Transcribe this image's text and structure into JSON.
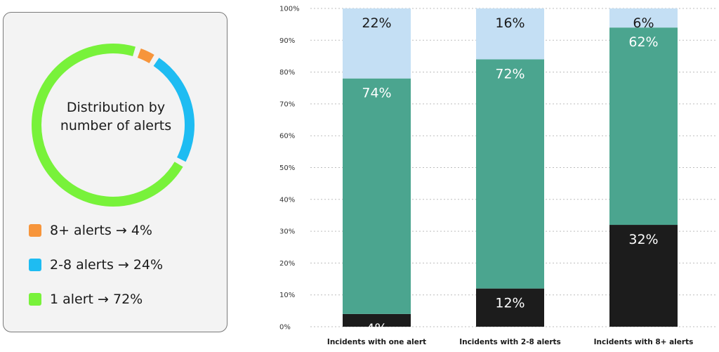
{
  "donut": {
    "title_line1": "Distribution by",
    "title_line2": "number of alerts",
    "slices": [
      {
        "label": "8+ alerts → 4%",
        "value": 4,
        "color": "#f7953b"
      },
      {
        "label": "2-8 alerts → 24%",
        "value": 24,
        "color": "#1ebcf2"
      },
      {
        "label": "1 alert → 72%",
        "value": 72,
        "color": "#78f23a"
      }
    ]
  },
  "chart_data": {
    "type": "bar",
    "stacked": true,
    "categories": [
      "Incidents with one alert",
      "Incidents with 2-8 alerts",
      "Incidents with 8+ alerts"
    ],
    "series": [
      {
        "values": [
          4,
          12,
          32
        ],
        "labels": [
          "4%",
          "12%",
          "32%"
        ],
        "color": "#1c1c1c",
        "label_color": "#ffffff"
      },
      {
        "values": [
          74,
          72,
          62
        ],
        "labels": [
          "74%",
          "72%",
          "62%"
        ],
        "color": "#4ba58f",
        "label_color": "#ffffff"
      },
      {
        "values": [
          22,
          16,
          6
        ],
        "labels": [
          "22%",
          "16%",
          "6%"
        ],
        "color": "#c4dff4",
        "label_color": "#1a1a1a"
      }
    ],
    "y_ticks": [
      "0%",
      "10%",
      "20%",
      "30%",
      "40%",
      "50%",
      "60%",
      "70%",
      "80%",
      "90%",
      "100%"
    ],
    "ylim": [
      0,
      100
    ],
    "grid": true,
    "gridline_style": "dotted",
    "xlabel": "",
    "ylabel": ""
  }
}
